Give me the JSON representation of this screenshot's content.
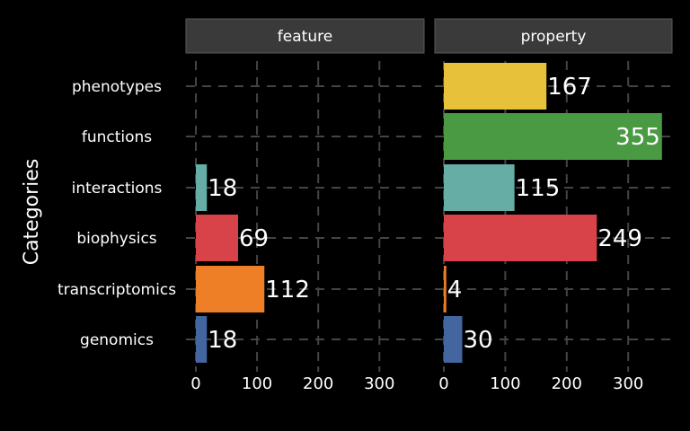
{
  "chart_data": {
    "type": "bar",
    "orientation": "horizontal",
    "ylabel": "Categories",
    "categories": [
      "phenotypes",
      "functions",
      "interactions",
      "biophysics",
      "transcriptomics",
      "genomics"
    ],
    "xlim": [
      0,
      360
    ],
    "x_ticks": [
      0,
      100,
      200,
      300
    ],
    "grid": true,
    "legend": "none",
    "panels": [
      {
        "name": "feature",
        "values": [
          null,
          null,
          18,
          69,
          112,
          18
        ]
      },
      {
        "name": "property",
        "values": [
          167,
          355,
          115,
          249,
          4,
          30
        ]
      }
    ],
    "colors": {
      "phenotypes": "#E8C13A",
      "functions": "#4A9A43",
      "interactions": "#66ADA5",
      "biophysics": "#D8434A",
      "transcriptomics": "#EE7F27",
      "genomics": "#4366A0"
    }
  }
}
